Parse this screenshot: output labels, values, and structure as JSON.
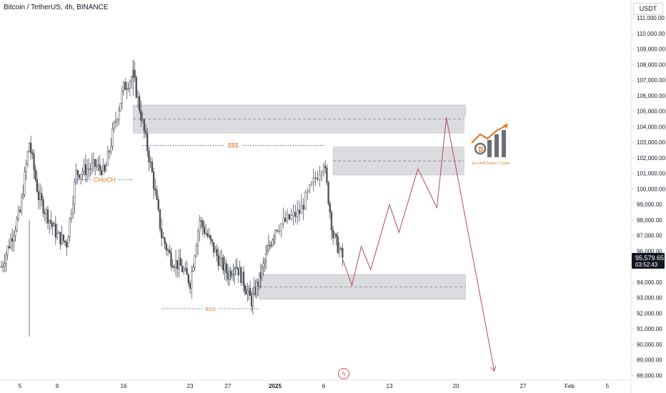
{
  "header": {
    "symbol_title": "Bitcoin / TetherUS, 4h, BINANCE"
  },
  "price_scale": {
    "currency": "USDT",
    "labels": [
      "111,000.00",
      "110,000.00",
      "109,000.00",
      "108,000.00",
      "107,000.00",
      "106,000.00",
      "105,000.00",
      "104,000.00",
      "103,000.00",
      "102,000.00",
      "101,000.00",
      "100,000.00",
      "99,000.00",
      "98,000.00",
      "97,000.00",
      "96,000.00",
      "94,000.00",
      "93,000.00",
      "92,000.00",
      "91,000.00",
      "90,000.00",
      "89,000.00",
      "88,000.00"
    ],
    "current_price": "95,579.65",
    "countdown": "03:52:43"
  },
  "time_scale": {
    "labels": [
      "5",
      "9",
      "16",
      "23",
      "27",
      "2025",
      "6",
      "13",
      "20",
      "27",
      "Feb",
      "5"
    ]
  },
  "annotations": {
    "choch": "CHoCH",
    "liquidity": "$$$",
    "bos": "BOS"
  },
  "logo": {
    "text": "SecondChance Crypto",
    "colors": {
      "accent": "#e07a2c",
      "gray": "#6b6f76"
    }
  },
  "icons": {
    "flash": "lightning-icon"
  },
  "colors": {
    "candle": "#4a4e57",
    "projection": "#b5495b",
    "zone": "#d5d6d9",
    "annotation": "#e07a2c",
    "line_blue": "#3b3e8f"
  },
  "chart_data": {
    "type": "candlestick",
    "symbol": "BTCUSDT",
    "interval": "4h",
    "ylim": [
      87700,
      111700
    ],
    "x_ticks": [
      "5",
      "9",
      "16",
      "23",
      "27",
      "2025",
      "6",
      "13",
      "20",
      "27",
      "Feb",
      "5"
    ],
    "x_range_dates": [
      "2024-12-05",
      "2025-02-05"
    ],
    "close_path": [
      [
        "2024-12-03",
        95000
      ],
      [
        "2024-12-05",
        98500
      ],
      [
        "2024-12-06",
        103000
      ],
      [
        "2024-12-07",
        99500
      ],
      [
        "2024-12-09",
        97000
      ],
      [
        "2024-12-10",
        96500
      ],
      [
        "2024-12-11",
        101000
      ],
      [
        "2024-12-13",
        101500
      ],
      [
        "2024-12-14",
        101000
      ],
      [
        "2024-12-15",
        104000
      ],
      [
        "2024-12-16",
        106500
      ],
      [
        "2024-12-17",
        107300
      ],
      [
        "2024-12-18",
        104200
      ],
      [
        "2024-12-19",
        101000
      ],
      [
        "2024-12-20",
        97000
      ],
      [
        "2024-12-21",
        95500
      ],
      [
        "2024-12-22",
        95000
      ],
      [
        "2024-12-23",
        94000
      ],
      [
        "2024-12-24",
        98000
      ],
      [
        "2024-12-26",
        95500
      ],
      [
        "2024-12-27",
        94500
      ],
      [
        "2024-12-28",
        95200
      ],
      [
        "2024-12-30",
        92800
      ],
      [
        "2024-12-31",
        94200
      ],
      [
        "2025-01-02",
        97500
      ],
      [
        "2025-01-03",
        98000
      ],
      [
        "2025-01-04",
        98500
      ],
      [
        "2025-01-06",
        101800
      ],
      [
        "2025-01-07",
        97000
      ],
      [
        "2025-01-08",
        95579.65
      ]
    ],
    "extremes": {
      "high": 108300,
      "low": 90500
    },
    "current_price": 95579.65,
    "zones": [
      {
        "top": 105400,
        "bottom": 103600,
        "mid": 104500,
        "from": "2024-12-17",
        "to": "2025-01-21"
      },
      {
        "top": 102700,
        "bottom": 100900,
        "mid": 101800,
        "from": "2025-01-07",
        "to": "2025-01-21"
      },
      {
        "top": 94500,
        "bottom": 92900,
        "mid": 93700,
        "from": "2024-12-31",
        "to": "2025-01-21"
      }
    ],
    "levels": [
      {
        "label": "$$$",
        "price": 102800,
        "from": "2024-12-18",
        "to": "2025-01-06"
      },
      {
        "label": "CHoCH",
        "price": 100600,
        "from": "2024-12-11",
        "to": "2024-12-17"
      },
      {
        "label": "BOS",
        "price": 92300,
        "from": "2024-12-20",
        "to": "2024-12-31"
      }
    ],
    "projection": [
      [
        "2025-01-08",
        95500
      ],
      [
        "2025-01-09",
        93800
      ],
      [
        "2025-01-10",
        96300
      ],
      [
        "2025-01-11",
        94800
      ],
      [
        "2025-01-13",
        99000
      ],
      [
        "2025-01-14",
        97200
      ],
      [
        "2025-01-16",
        101300
      ],
      [
        "2025-01-18",
        98800
      ],
      [
        "2025-01-19",
        104600
      ],
      [
        "2025-01-24",
        88300
      ]
    ]
  }
}
